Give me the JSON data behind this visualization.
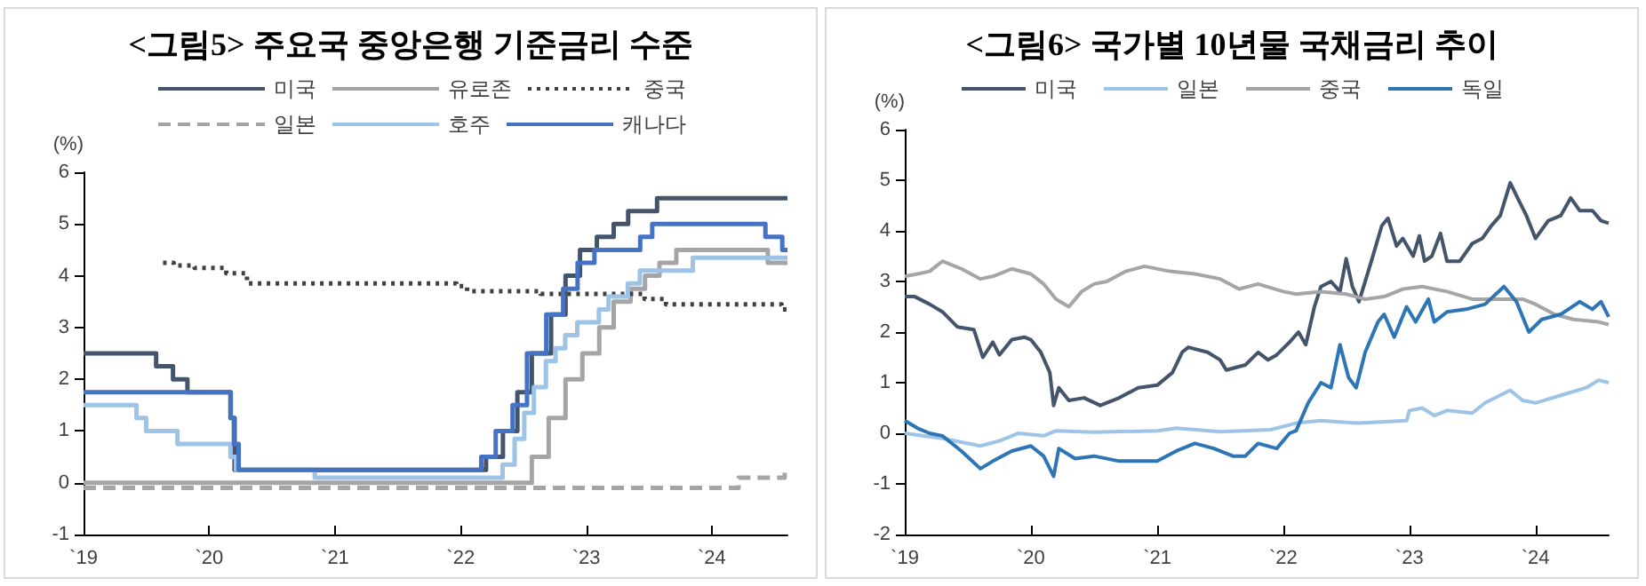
{
  "chart_data": [
    {
      "type": "step",
      "title": "<그림5> 주요국 중앙은행 기준금리 수준",
      "ylabel": "(%)",
      "xlim": [
        "2019-01-01",
        "2024-08-08"
      ],
      "xticks": [
        {
          "value": "2019",
          "label": "`19"
        },
        {
          "value": "2020",
          "label": "`20"
        },
        {
          "value": "2021",
          "label": "`21"
        },
        {
          "value": "2022",
          "label": "`22"
        },
        {
          "value": "2023",
          "label": "`23"
        },
        {
          "value": "2024",
          "label": "`24"
        }
      ],
      "ylim": [
        -1,
        6
      ],
      "yticks": [
        -1,
        0,
        1,
        2,
        3,
        4,
        5,
        6
      ],
      "grid": false,
      "legend": "top",
      "marker": "none",
      "series": [
        {
          "name": "미국",
          "color": "#44546a",
          "line_style": "solid",
          "x": [
            "2019-01-01",
            "2019-07-31",
            "2019-09-18",
            "2019-10-30",
            "2020-03-03",
            "2020-03-15",
            "2022-03-16",
            "2022-05-04",
            "2022-06-15",
            "2022-07-27",
            "2022-09-21",
            "2022-11-02",
            "2022-12-14",
            "2023-02-01",
            "2023-03-22",
            "2023-05-03",
            "2023-07-26",
            "2024-08-08"
          ],
          "values": [
            2.5,
            2.25,
            2.0,
            1.75,
            1.25,
            0.25,
            0.5,
            1.0,
            1.75,
            2.5,
            3.25,
            4.0,
            4.5,
            4.75,
            5.0,
            5.25,
            5.5,
            5.5
          ]
        },
        {
          "name": "유로존",
          "color": "#a5a5a5",
          "line_style": "solid",
          "x": [
            "2019-01-01",
            "2022-07-27",
            "2022-09-14",
            "2022-11-02",
            "2022-12-21",
            "2023-02-08",
            "2023-03-22",
            "2023-05-10",
            "2023-06-21",
            "2023-08-02",
            "2023-09-20",
            "2024-06-12",
            "2024-08-08"
          ],
          "values": [
            0,
            0.5,
            1.25,
            2.0,
            2.5,
            3.0,
            3.5,
            3.75,
            4.0,
            4.25,
            4.5,
            4.25,
            4.25
          ]
        },
        {
          "name": "중국",
          "color": "#404040",
          "line_style": "dotted",
          "x": [
            "2019-08-20",
            "2019-09-20",
            "2019-11-20",
            "2020-02-20",
            "2020-04-20",
            "2021-12-20",
            "2022-01-20",
            "2022-08-22",
            "2023-06-20",
            "2023-08-21",
            "2024-07-22",
            "2024-08-08"
          ],
          "values": [
            4.25,
            4.2,
            4.15,
            4.05,
            3.85,
            3.8,
            3.7,
            3.65,
            3.55,
            3.45,
            3.35,
            3.35
          ]
        },
        {
          "name": "일본",
          "color": "#a5a5a5",
          "line_style": "dashed",
          "x": [
            "2019-01-01",
            "2024-03-19",
            "2024-07-31",
            "2024-08-08"
          ],
          "values": [
            -0.1,
            0.1,
            0.25,
            0.25
          ]
        },
        {
          "name": "호주",
          "color": "#9dc3e6",
          "line_style": "solid",
          "x": [
            "2019-01-01",
            "2019-06-04",
            "2019-07-02",
            "2019-10-01",
            "2020-03-03",
            "2020-03-19",
            "2020-11-03",
            "2022-05-03",
            "2022-06-07",
            "2022-07-05",
            "2022-08-02",
            "2022-09-06",
            "2022-10-04",
            "2022-11-01",
            "2022-12-06",
            "2023-02-07",
            "2023-03-07",
            "2023-05-02",
            "2023-06-06",
            "2023-11-07",
            "2024-08-08"
          ],
          "values": [
            1.5,
            1.25,
            1.0,
            0.75,
            0.5,
            0.25,
            0.1,
            0.35,
            0.85,
            1.35,
            1.85,
            2.35,
            2.6,
            2.85,
            3.1,
            3.35,
            3.6,
            3.85,
            4.1,
            4.35,
            4.35
          ]
        },
        {
          "name": "캐나다",
          "color": "#4472c4",
          "line_style": "solid",
          "x": [
            "2019-01-01",
            "2020-03-04",
            "2020-03-13",
            "2020-03-27",
            "2022-03-02",
            "2022-04-13",
            "2022-06-01",
            "2022-07-13",
            "2022-09-07",
            "2022-10-26",
            "2022-12-07",
            "2023-01-25",
            "2023-06-07",
            "2023-07-12",
            "2024-06-05",
            "2024-07-24",
            "2024-08-08"
          ],
          "values": [
            1.75,
            1.25,
            0.75,
            0.25,
            0.5,
            1.0,
            1.5,
            2.5,
            3.25,
            3.75,
            4.25,
            4.5,
            4.75,
            5.0,
            4.75,
            4.5,
            4.5
          ]
        }
      ]
    },
    {
      "type": "line",
      "title": "<그림6> 국가별 10년물 국채금리 추이",
      "ylabel": "(%)",
      "xlim": [
        "2019-01-01",
        "2024-07-31"
      ],
      "xticks": [
        {
          "value": "2019",
          "label": "`19"
        },
        {
          "value": "2020",
          "label": "`20"
        },
        {
          "value": "2021",
          "label": "`21"
        },
        {
          "value": "2022",
          "label": "`22"
        },
        {
          "value": "2023",
          "label": "`23"
        },
        {
          "value": "2024",
          "label": "`24"
        }
      ],
      "ylim": [
        -2,
        6
      ],
      "yticks": [
        -2,
        -1,
        0,
        1,
        2,
        3,
        4,
        5,
        6
      ],
      "grid": false,
      "legend": "top",
      "marker": "none",
      "series": [
        {
          "name": "미국",
          "color": "#44546a",
          "x": [
            "2019-01-01",
            "2019-01-30",
            "2019-03-14",
            "2019-04-20",
            "2019-06-03",
            "2019-07-20",
            "2019-08-15",
            "2019-09-13",
            "2019-10-02",
            "2019-11-07",
            "2019-12-13",
            "2020-01-01",
            "2020-01-30",
            "2020-02-25",
            "2020-03-07",
            "2020-03-22",
            "2020-04-20",
            "2020-06-03",
            "2020-07-20",
            "2020-09-13",
            "2020-11-07",
            "2021-01-01",
            "2021-02-14",
            "2021-03-14",
            "2021-04-01",
            "2021-05-27",
            "2021-07-02",
            "2021-07-20",
            "2021-09-13",
            "2021-10-20",
            "2021-11-18",
            "2021-12-13",
            "2022-01-19",
            "2022-02-14",
            "2022-03-07",
            "2022-04-01",
            "2022-04-20",
            "2022-05-19",
            "2022-06-14",
            "2022-07-02",
            "2022-07-20",
            "2022-08-08",
            "2022-09-13",
            "2022-10-13",
            "2022-10-31",
            "2022-11-25",
            "2022-12-13",
            "2023-01-12",
            "2023-01-30",
            "2023-02-14",
            "2023-03-07",
            "2023-04-01",
            "2023-04-20",
            "2023-05-27",
            "2023-07-02",
            "2023-07-31",
            "2023-08-26",
            "2023-09-21",
            "2023-10-20",
            "2023-11-14",
            "2023-12-06",
            "2024-01-01",
            "2024-02-07",
            "2024-03-14",
            "2024-04-12",
            "2024-05-08",
            "2024-06-14",
            "2024-07-09",
            "2024-07-31"
          ],
          "values": [
            2.7,
            2.7,
            2.55,
            2.4,
            2.1,
            2.05,
            1.5,
            1.8,
            1.55,
            1.85,
            1.9,
            1.85,
            1.6,
            1.2,
            0.55,
            0.9,
            0.65,
            0.7,
            0.55,
            0.7,
            0.9,
            0.95,
            1.2,
            1.6,
            1.7,
            1.6,
            1.45,
            1.25,
            1.35,
            1.6,
            1.45,
            1.55,
            1.8,
            2.0,
            1.75,
            2.5,
            2.9,
            3.0,
            2.8,
            3.45,
            2.9,
            2.6,
            3.4,
            4.1,
            4.25,
            3.7,
            3.85,
            3.5,
            3.9,
            3.4,
            3.5,
            3.95,
            3.4,
            3.4,
            3.75,
            3.85,
            4.1,
            4.3,
            4.95,
            4.6,
            4.3,
            3.85,
            4.2,
            4.3,
            4.65,
            4.4,
            4.4,
            4.2,
            4.15
          ]
        },
        {
          "name": "일본",
          "color": "#9dc3e6",
          "x": [
            "2019-01-01",
            "2019-04-20",
            "2019-08-08",
            "2019-10-02",
            "2019-11-25",
            "2020-02-07",
            "2020-03-14",
            "2020-07-02",
            "2021-01-01",
            "2021-02-25",
            "2021-07-02",
            "2021-11-25",
            "2022-02-07",
            "2022-04-20",
            "2022-08-08",
            "2022-12-24",
            "2023-01-01",
            "2023-02-07",
            "2023-03-14",
            "2023-04-20",
            "2023-07-02",
            "2023-08-08",
            "2023-10-20",
            "2023-11-25",
            "2024-01-01",
            "2024-03-14",
            "2024-05-27",
            "2024-07-02",
            "2024-07-31"
          ],
          "values": [
            0.0,
            -0.1,
            -0.25,
            -0.15,
            0.0,
            -0.05,
            0.05,
            0.02,
            0.05,
            0.1,
            0.03,
            0.07,
            0.2,
            0.25,
            0.2,
            0.25,
            0.45,
            0.5,
            0.35,
            0.45,
            0.4,
            0.6,
            0.85,
            0.65,
            0.6,
            0.75,
            0.9,
            1.05,
            1.0
          ]
        },
        {
          "name": "중국",
          "color": "#a5a5a5",
          "x": [
            "2019-01-01",
            "2019-02-07",
            "2019-03-14",
            "2019-04-20",
            "2019-06-14",
            "2019-08-08",
            "2019-09-13",
            "2019-11-07",
            "2020-01-01",
            "2020-02-07",
            "2020-03-14",
            "2020-04-20",
            "2020-05-27",
            "2020-07-02",
            "2020-08-08",
            "2020-10-02",
            "2020-11-25",
            "2021-02-07",
            "2021-04-20",
            "2021-07-02",
            "2021-08-26",
            "2021-10-20",
            "2022-01-01",
            "2022-02-07",
            "2022-04-20",
            "2022-07-02",
            "2022-08-26",
            "2022-10-20",
            "2022-12-13",
            "2023-02-07",
            "2023-04-20",
            "2023-07-02",
            "2023-09-13",
            "2023-11-25",
            "2024-01-01",
            "2024-02-25",
            "2024-04-20",
            "2024-07-02",
            "2024-07-31"
          ],
          "values": [
            3.1,
            3.15,
            3.2,
            3.4,
            3.25,
            3.05,
            3.1,
            3.25,
            3.15,
            2.95,
            2.65,
            2.5,
            2.8,
            2.95,
            3.0,
            3.2,
            3.3,
            3.2,
            3.15,
            3.05,
            2.85,
            2.95,
            2.8,
            2.75,
            2.8,
            2.75,
            2.65,
            2.7,
            2.85,
            2.9,
            2.8,
            2.65,
            2.65,
            2.65,
            2.55,
            2.35,
            2.25,
            2.2,
            2.15
          ]
        },
        {
          "name": "독일",
          "color": "#2e75b6",
          "x": [
            "2019-01-01",
            "2019-02-07",
            "2019-03-14",
            "2019-04-20",
            "2019-06-14",
            "2019-08-08",
            "2019-09-13",
            "2019-11-07",
            "2020-01-01",
            "2020-02-07",
            "2020-03-07",
            "2020-03-22",
            "2020-05-08",
            "2020-07-02",
            "2020-09-13",
            "2020-11-07",
            "2021-01-01",
            "2021-02-25",
            "2021-04-20",
            "2021-06-14",
            "2021-08-08",
            "2021-09-13",
            "2021-10-20",
            "2021-12-13",
            "2022-01-19",
            "2022-02-07",
            "2022-03-14",
            "2022-04-20",
            "2022-05-19",
            "2022-06-14",
            "2022-07-09",
            "2022-07-31",
            "2022-08-26",
            "2022-10-02",
            "2022-10-20",
            "2022-11-18",
            "2022-12-24",
            "2023-01-19",
            "2023-02-25",
            "2023-03-14",
            "2023-04-20",
            "2023-06-14",
            "2023-08-08",
            "2023-10-02",
            "2023-11-07",
            "2023-12-13",
            "2024-01-19",
            "2024-03-14",
            "2024-05-08",
            "2024-06-14",
            "2024-07-09",
            "2024-07-31"
          ],
          "values": [
            0.25,
            0.1,
            0.0,
            -0.05,
            -0.35,
            -0.7,
            -0.55,
            -0.35,
            -0.25,
            -0.45,
            -0.85,
            -0.3,
            -0.5,
            -0.45,
            -0.55,
            -0.55,
            -0.55,
            -0.35,
            -0.2,
            -0.3,
            -0.45,
            -0.45,
            -0.2,
            -0.3,
            0.0,
            0.05,
            0.6,
            1.0,
            0.9,
            1.75,
            1.1,
            0.9,
            1.6,
            2.2,
            2.35,
            1.9,
            2.5,
            2.2,
            2.65,
            2.2,
            2.4,
            2.45,
            2.55,
            2.9,
            2.6,
            2.0,
            2.25,
            2.35,
            2.6,
            2.45,
            2.6,
            2.3
          ]
        }
      ]
    }
  ]
}
